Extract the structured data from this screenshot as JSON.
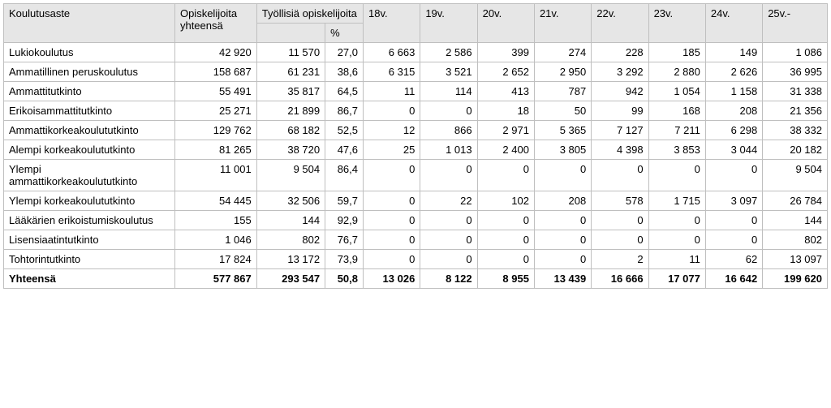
{
  "table": {
    "headers": {
      "koulutusaste": "Koulutusaste",
      "opiskelijoita": "Opiskelijoita yhteensä",
      "tyollisia": "Työllisiä opiskelijoita",
      "pct": "%",
      "ages": [
        "18v.",
        "19v.",
        "20v.",
        "21v.",
        "22v.",
        "23v.",
        "24v.",
        "25v.-"
      ]
    },
    "header_bg": "#e6e6e6",
    "border_color": "#bfbfbf",
    "font_size": 13,
    "rows": [
      {
        "label": "Lukiokoulutus",
        "total": "42 920",
        "emp": "11 570",
        "pct": "27,0",
        "ages": [
          "6 663",
          "2 586",
          "399",
          "274",
          "228",
          "185",
          "149",
          "1 086"
        ]
      },
      {
        "label": "Ammatillinen peruskoulutus",
        "total": "158 687",
        "emp": "61 231",
        "pct": "38,6",
        "ages": [
          "6 315",
          "3 521",
          "2 652",
          "2 950",
          "3 292",
          "2 880",
          "2 626",
          "36 995"
        ]
      },
      {
        "label": "Ammattitutkinto",
        "total": "55 491",
        "emp": "35 817",
        "pct": "64,5",
        "ages": [
          "11",
          "114",
          "413",
          "787",
          "942",
          "1 054",
          "1 158",
          "31 338"
        ]
      },
      {
        "label": "Erikoisammattitutkinto",
        "total": "25 271",
        "emp": "21 899",
        "pct": "86,7",
        "ages": [
          "0",
          "0",
          "18",
          "50",
          "99",
          "168",
          "208",
          "21 356"
        ]
      },
      {
        "label": "Ammattikorkeakoulututkinto",
        "total": "129 762",
        "emp": "68 182",
        "pct": "52,5",
        "ages": [
          "12",
          "866",
          "2 971",
          "5 365",
          "7 127",
          "7 211",
          "6 298",
          "38 332"
        ]
      },
      {
        "label": "Alempi korkeakoulututkinto",
        "total": "81 265",
        "emp": "38 720",
        "pct": "47,6",
        "ages": [
          "25",
          "1 013",
          "2 400",
          "3 805",
          "4 398",
          "3 853",
          "3 044",
          "20 182"
        ]
      },
      {
        "label": "Ylempi ammattikorkeakoulututkinto",
        "total": "11 001",
        "emp": "9 504",
        "pct": "86,4",
        "ages": [
          "0",
          "0",
          "0",
          "0",
          "0",
          "0",
          "0",
          "9 504"
        ]
      },
      {
        "label": "Ylempi korkeakoulututkinto",
        "total": "54 445",
        "emp": "32 506",
        "pct": "59,7",
        "ages": [
          "0",
          "22",
          "102",
          "208",
          "578",
          "1 715",
          "3 097",
          "26 784"
        ]
      },
      {
        "label": "Lääkärien erikoistumiskoulutus",
        "total": "155",
        "emp": "144",
        "pct": "92,9",
        "ages": [
          "0",
          "0",
          "0",
          "0",
          "0",
          "0",
          "0",
          "144"
        ]
      },
      {
        "label": "Lisensiaatintutkinto",
        "total": "1 046",
        "emp": "802",
        "pct": "76,7",
        "ages": [
          "0",
          "0",
          "0",
          "0",
          "0",
          "0",
          "0",
          "802"
        ]
      },
      {
        "label": "Tohtorintutkinto",
        "total": "17 824",
        "emp": "13 172",
        "pct": "73,9",
        "ages": [
          "0",
          "0",
          "0",
          "0",
          "2",
          "11",
          "62",
          "13 097"
        ]
      }
    ],
    "total_row": {
      "label": "Yhteensä",
      "total": "577 867",
      "emp": "293 547",
      "pct": "50,8",
      "ages": [
        "13 026",
        "8 122",
        "8 955",
        "13 439",
        "16 666",
        "17 077",
        "16 642",
        "199 620"
      ]
    }
  }
}
